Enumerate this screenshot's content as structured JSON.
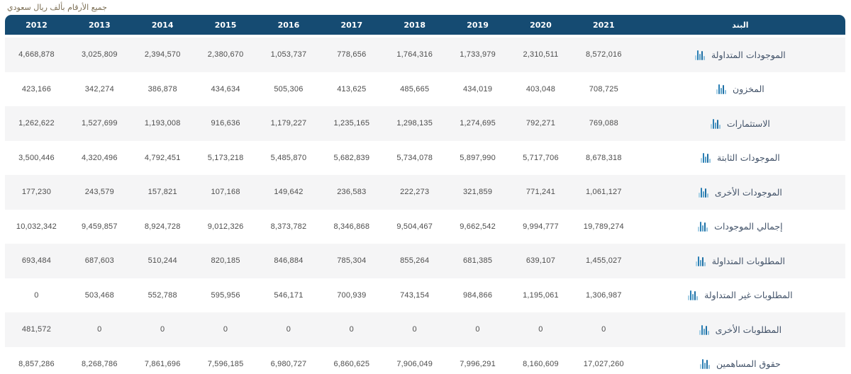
{
  "caption": "جميع الأرقام بألف ريال سعودي",
  "colors": {
    "header_bg": "#154b72",
    "stripe_bg": "#f5f5f6",
    "number_color": "#4d4d4d",
    "label_color": "#44546a",
    "caption_color": "#7c6f55",
    "icon_bar_colors": [
      "#8fc1dd",
      "#1d6fa5",
      "#5aa0c8",
      "#2a7fb5",
      "#a9d1e6"
    ]
  },
  "icons": {
    "row_icon": "bar-chart-icon",
    "row_icon_bar_heights": [
      6,
      13,
      9,
      14,
      7
    ]
  },
  "chart_data": {
    "type": "table",
    "title": "جميع الأرقام بألف ريال سعودي",
    "item_column_header": "البند",
    "categories": [
      "2012",
      "2013",
      "2014",
      "2015",
      "2016",
      "2017",
      "2018",
      "2019",
      "2020",
      "2021"
    ],
    "series": [
      {
        "name": "الموجودات المتداولة",
        "values": [
          4668878,
          3025809,
          2394570,
          2380670,
          1053737,
          778656,
          1764316,
          1733979,
          2310511,
          8572016
        ]
      },
      {
        "name": "المخزون",
        "values": [
          423166,
          342274,
          386878,
          434634,
          505306,
          413625,
          485665,
          434019,
          403048,
          708725
        ]
      },
      {
        "name": "الاستثمارات",
        "values": [
          1262622,
          1527699,
          1193008,
          916636,
          1179227,
          1235165,
          1298135,
          1274695,
          792271,
          769088
        ]
      },
      {
        "name": "الموجودات الثابتة",
        "values": [
          3500446,
          4320496,
          4792451,
          5173218,
          5485870,
          5682839,
          5734078,
          5897990,
          5717706,
          8678318
        ]
      },
      {
        "name": "الموجودات الأخرى",
        "values": [
          177230,
          243579,
          157821,
          107168,
          149642,
          236583,
          222273,
          321859,
          771241,
          1061127
        ]
      },
      {
        "name": "إجمالي الموجودات",
        "values": [
          10032342,
          9459857,
          8924728,
          9012326,
          8373782,
          8346868,
          9504467,
          9662542,
          9994777,
          19789274
        ]
      },
      {
        "name": "المطلوبات المتداولة",
        "values": [
          693484,
          687603,
          510244,
          820185,
          846884,
          785304,
          855264,
          681385,
          639107,
          1455027
        ]
      },
      {
        "name": "المطلوبات غير المتداولة",
        "values": [
          0,
          503468,
          552788,
          595956,
          546171,
          700939,
          743154,
          984866,
          1195061,
          1306987
        ]
      },
      {
        "name": "المطلوبات الأخرى",
        "values": [
          481572,
          0,
          0,
          0,
          0,
          0,
          0,
          0,
          0,
          0
        ]
      },
      {
        "name": "حقوق المساهمين",
        "values": [
          8857286,
          8268786,
          7861696,
          7596185,
          6980727,
          6860625,
          7906049,
          7996291,
          8160609,
          17027260
        ]
      }
    ],
    "layout": "rows striped, years ascending left-to-right, item column on far right, RTL widget"
  }
}
